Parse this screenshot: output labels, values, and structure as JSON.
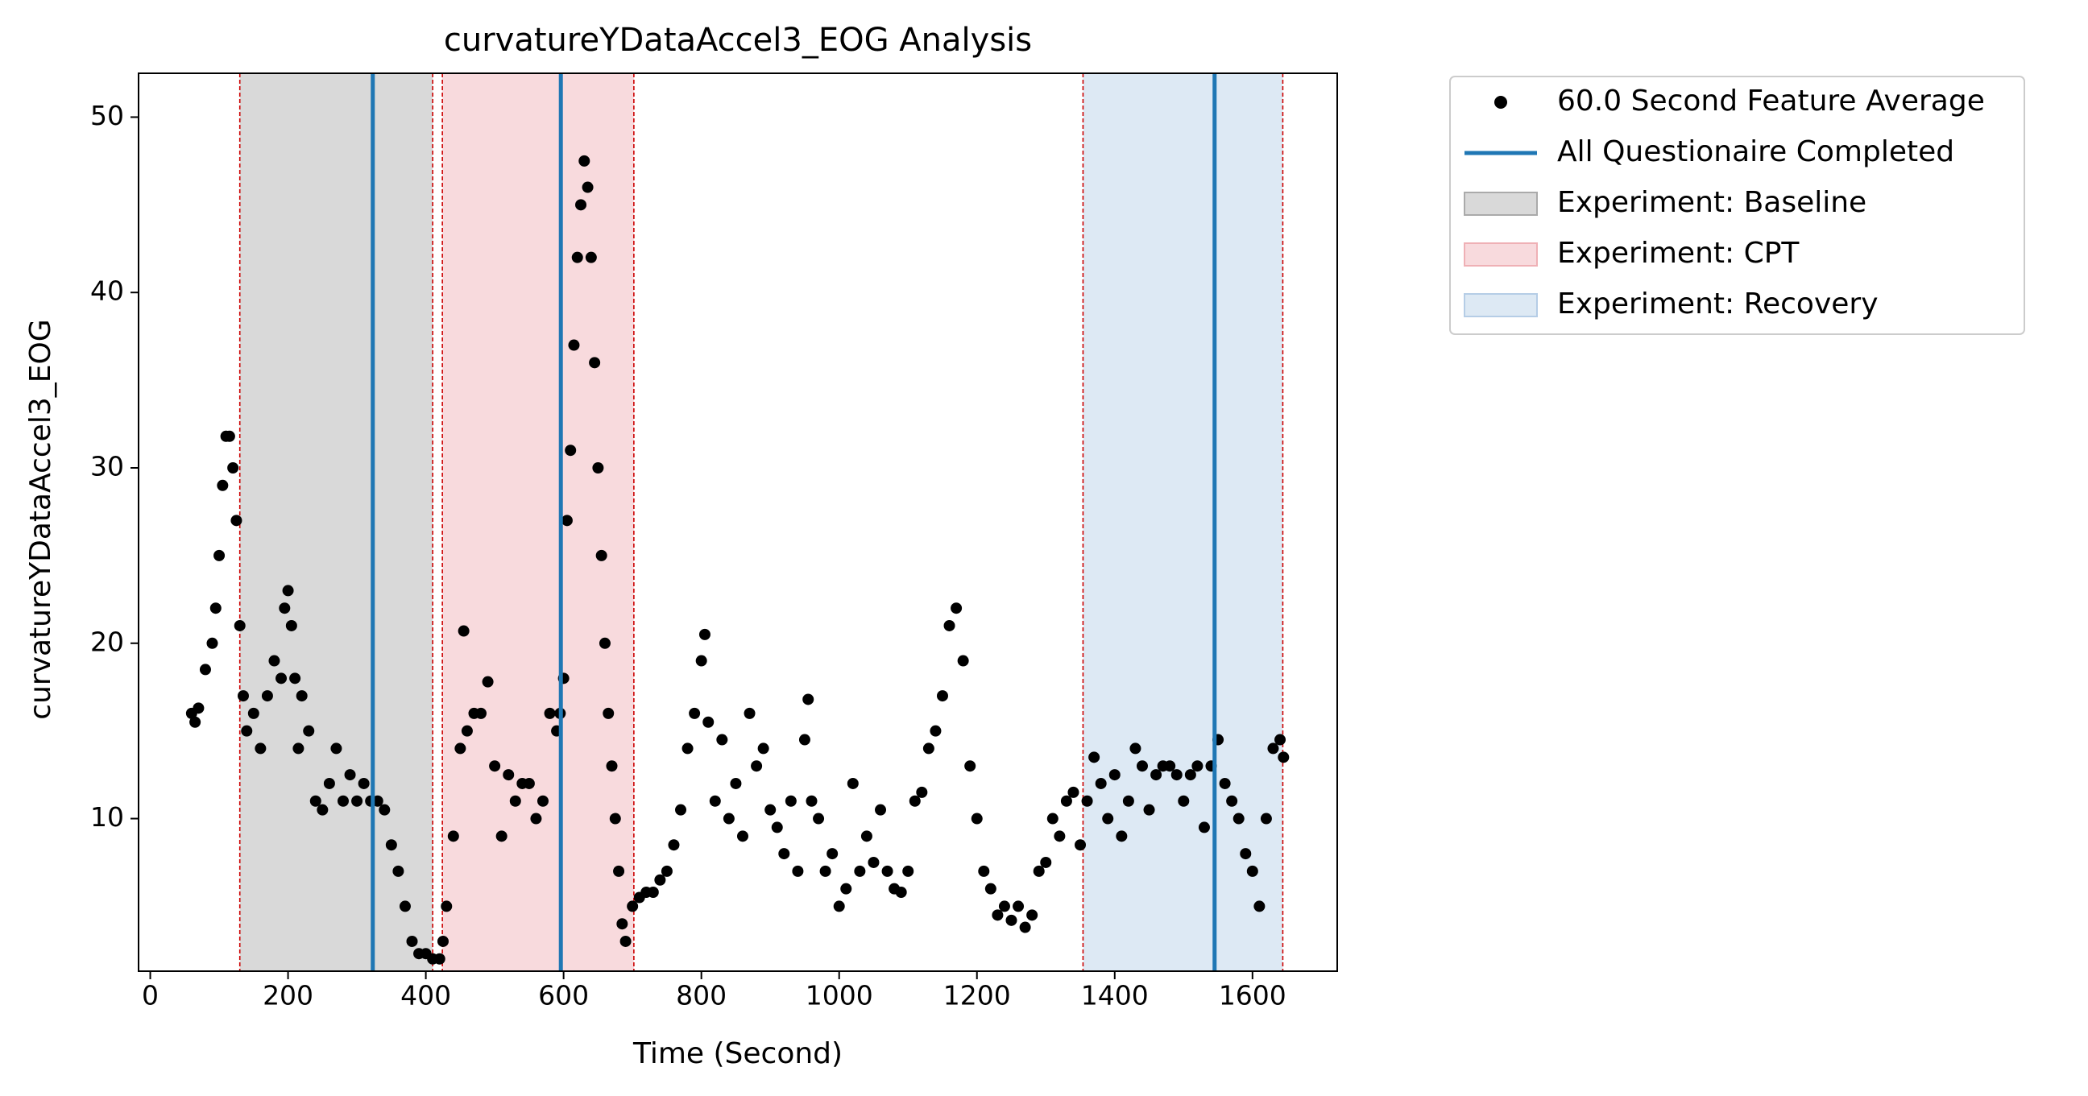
{
  "chart_data": {
    "type": "scatter",
    "title": "curvatureYDataAccel3_EOG Analysis",
    "xlabel": "Time (Second)",
    "ylabel": "curvatureYDataAccel3_EOG",
    "xlim": [
      -17,
      1723
    ],
    "ylim": [
      1.3,
      52.5
    ],
    "xticks": [
      0,
      200,
      400,
      600,
      800,
      1000,
      1200,
      1400,
      1600
    ],
    "yticks": [
      10,
      20,
      30,
      40,
      50
    ],
    "legend": "outside-upper-right",
    "series": [
      {
        "name": "60.0 Second Feature Average",
        "color": "#000000",
        "x": [
          60,
          65,
          70,
          80,
          90,
          95,
          100,
          105,
          110,
          115,
          120,
          125,
          130,
          135,
          140,
          150,
          160,
          170,
          180,
          190,
          195,
          200,
          205,
          210,
          215,
          220,
          230,
          240,
          250,
          260,
          270,
          280,
          290,
          300,
          310,
          320,
          330,
          340,
          350,
          360,
          370,
          380,
          390,
          400,
          410,
          420,
          425,
          430,
          440,
          450,
          455,
          460,
          470,
          480,
          490,
          500,
          510,
          520,
          530,
          540,
          550,
          560,
          570,
          580,
          590,
          595,
          600,
          605,
          610,
          615,
          620,
          625,
          630,
          635,
          640,
          645,
          650,
          655,
          660,
          665,
          670,
          675,
          680,
          685,
          690,
          700,
          710,
          720,
          730,
          740,
          750,
          760,
          770,
          780,
          790,
          800,
          805,
          810,
          820,
          830,
          840,
          850,
          860,
          870,
          880,
          890,
          900,
          910,
          920,
          930,
          940,
          950,
          955,
          960,
          970,
          980,
          990,
          1000,
          1010,
          1020,
          1030,
          1040,
          1050,
          1060,
          1070,
          1080,
          1090,
          1100,
          1110,
          1120,
          1130,
          1140,
          1150,
          1160,
          1170,
          1180,
          1190,
          1200,
          1210,
          1220,
          1230,
          1240,
          1250,
          1260,
          1270,
          1280,
          1290,
          1300,
          1310,
          1320,
          1330,
          1340,
          1350,
          1360,
          1370,
          1380,
          1390,
          1400,
          1410,
          1420,
          1430,
          1440,
          1450,
          1460,
          1470,
          1480,
          1490,
          1500,
          1510,
          1520,
          1530,
          1540,
          1550,
          1560,
          1570,
          1580,
          1590,
          1600,
          1610,
          1620,
          1630,
          1640,
          1645
        ],
        "values": [
          16,
          15.5,
          16.3,
          18.5,
          20,
          22,
          25,
          29,
          31.8,
          31.8,
          30,
          27,
          21,
          17,
          15,
          16,
          14,
          17,
          19,
          18,
          22,
          23,
          21,
          18,
          14,
          17,
          15,
          11,
          10.5,
          12,
          14,
          11,
          12.5,
          11,
          12,
          11,
          11,
          10.5,
          8.5,
          7,
          5,
          3,
          2.3,
          2.3,
          2,
          2,
          3,
          5,
          9,
          14,
          20.7,
          15,
          16,
          16,
          17.8,
          13,
          9,
          12.5,
          11,
          12,
          12,
          10,
          11,
          16,
          15,
          16,
          18,
          27,
          31,
          37,
          42,
          45,
          47.5,
          46,
          42,
          36,
          30,
          25,
          20,
          16,
          13,
          10,
          7,
          4,
          3,
          5,
          5.5,
          5.8,
          5.8,
          6.5,
          7,
          8.5,
          10.5,
          14,
          16,
          19,
          20.5,
          15.5,
          11,
          14.5,
          10,
          12,
          9,
          16,
          13,
          14,
          10.5,
          9.5,
          8,
          11,
          7,
          14.5,
          16.8,
          11,
          10,
          7,
          8,
          5,
          6,
          12,
          7,
          9,
          7.5,
          10.5,
          7,
          6,
          5.8,
          7,
          11,
          11.5,
          14,
          15,
          17,
          21,
          22,
          19,
          13,
          10,
          7,
          6,
          4.5,
          5,
          4.2,
          5,
          3.8,
          4.5,
          7,
          7.5,
          10,
          9,
          11,
          11.5,
          8.5,
          11,
          13.5,
          12,
          10,
          12.5,
          9,
          11,
          14,
          13,
          10.5,
          12.5,
          13,
          13,
          12.5,
          11,
          12.5,
          13,
          9.5,
          13,
          14.5,
          12,
          11,
          10,
          8,
          7,
          5,
          10,
          14,
          14.5,
          13.5
        ]
      }
    ],
    "vlines": {
      "name": "All Questionaire Completed",
      "color": "#1f77b4",
      "x": [
        323,
        596,
        1545
      ]
    },
    "spans": [
      {
        "name": "Experiment: Baseline",
        "start": 130,
        "end": 410,
        "color": "#d9d9d9",
        "edge": "#aaaaaa"
      },
      {
        "name": "Experiment: CPT",
        "start": 424,
        "end": 702,
        "color": "#f8dadd",
        "edge": "#efb0b5"
      },
      {
        "name": "Experiment: Recovery",
        "start": 1354,
        "end": 1644,
        "color": "#dde9f4",
        "edge": "#b5cde6"
      }
    ],
    "boundary_color": "#cc0000"
  }
}
